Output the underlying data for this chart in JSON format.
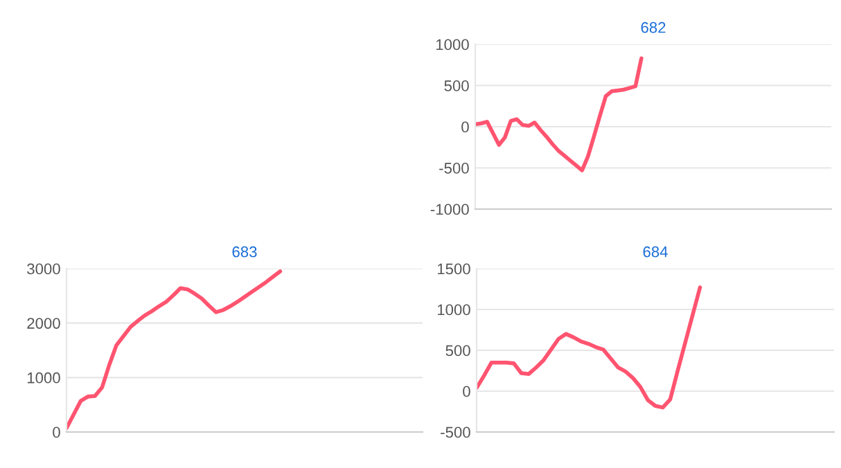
{
  "chart_data": [
    {
      "type": "line",
      "title": "682",
      "categories": [
        null,
        null,
        null,
        null,
        null,
        null,
        null,
        null,
        null,
        null,
        null,
        null,
        null,
        null,
        null,
        null,
        null,
        null,
        null,
        null,
        null,
        null,
        null,
        null,
        null,
        null,
        null,
        null,
        null,
        null,
        null,
        null,
        null,
        null,
        null,
        null,
        null,
        null,
        null,
        null,
        null,
        null,
        null,
        null,
        null,
        null,
        null,
        null,
        null,
        null,
        null,
        null,
        null,
        null,
        null,
        null,
        null,
        null,
        null,
        null,
        null
      ],
      "series": [
        {
          "color": "#ff5470",
          "values": [
            30,
            40,
            60,
            -80,
            -220,
            -130,
            70,
            90,
            20,
            10,
            50,
            -40,
            -120,
            -210,
            -290,
            -350,
            -410,
            -470,
            -530,
            -360,
            -120,
            130,
            370,
            430,
            440,
            450,
            470,
            490,
            830,
            null,
            null,
            null,
            null,
            null,
            null,
            null,
            null,
            null,
            null,
            null,
            null,
            null,
            null,
            null,
            null,
            null,
            null,
            null,
            null,
            null,
            null,
            null,
            null,
            null,
            null,
            null,
            null,
            null,
            null,
            null,
            null
          ]
        }
      ],
      "ylim": [
        -1000,
        1000
      ],
      "yticks": [
        -1000,
        -500,
        0,
        500,
        1000
      ],
      "grid": "y",
      "tick_labels": "y"
    },
    {
      "type": "line",
      "title": "683",
      "categories": [
        null,
        null,
        null,
        null,
        null,
        null,
        null,
        null,
        null,
        null,
        null,
        null,
        null,
        null,
        null,
        null,
        null,
        null,
        null,
        null,
        null,
        null,
        null,
        null,
        null,
        null,
        null,
        null,
        null,
        null,
        null,
        null,
        null,
        null,
        null,
        null,
        null,
        null,
        null,
        null,
        null,
        null,
        null,
        null,
        null,
        null,
        null,
        null,
        null,
        null,
        null
      ],
      "series": [
        {
          "color": "#ff5470",
          "values": [
            70,
            320,
            570,
            650,
            660,
            820,
            1230,
            1590,
            1760,
            1930,
            2040,
            2140,
            2220,
            2310,
            2390,
            2510,
            2640,
            2620,
            2540,
            2450,
            2320,
            2200,
            2240,
            2310,
            2390,
            2480,
            2570,
            2660,
            2750,
            2850,
            2950,
            null,
            null,
            null,
            null,
            null,
            null,
            null,
            null,
            null,
            null,
            null,
            null,
            null,
            null,
            null,
            null,
            null,
            null,
            null,
            null
          ]
        }
      ],
      "ylim": [
        0,
        3000
      ],
      "yticks": [
        0,
        1000,
        2000,
        3000
      ],
      "grid": "y",
      "tick_labels": "y"
    },
    {
      "type": "line",
      "title": "684",
      "categories": [
        null,
        null,
        null,
        null,
        null,
        null,
        null,
        null,
        null,
        null,
        null,
        null,
        null,
        null,
        null,
        null,
        null,
        null,
        null,
        null,
        null,
        null,
        null,
        null,
        null,
        null,
        null,
        null,
        null,
        null,
        null,
        null,
        null,
        null,
        null,
        null,
        null,
        null,
        null,
        null,
        null,
        null,
        null,
        null,
        null,
        null,
        null,
        null,
        null
      ],
      "series": [
        {
          "color": "#ff5470",
          "values": [
            40,
            190,
            350,
            350,
            350,
            340,
            220,
            210,
            290,
            380,
            510,
            640,
            700,
            660,
            610,
            580,
            540,
            510,
            400,
            290,
            240,
            160,
            50,
            -110,
            -180,
            -200,
            -100,
            250,
            590,
            930,
            1270,
            null,
            null,
            null,
            null,
            null,
            null,
            null,
            null,
            null,
            null,
            null,
            null,
            null,
            null,
            null,
            null,
            null,
            null
          ]
        }
      ],
      "ylim": [
        -500,
        1500
      ],
      "yticks": [
        -500,
        0,
        500,
        1000,
        1500
      ],
      "grid": "y",
      "tick_labels": "y"
    }
  ]
}
